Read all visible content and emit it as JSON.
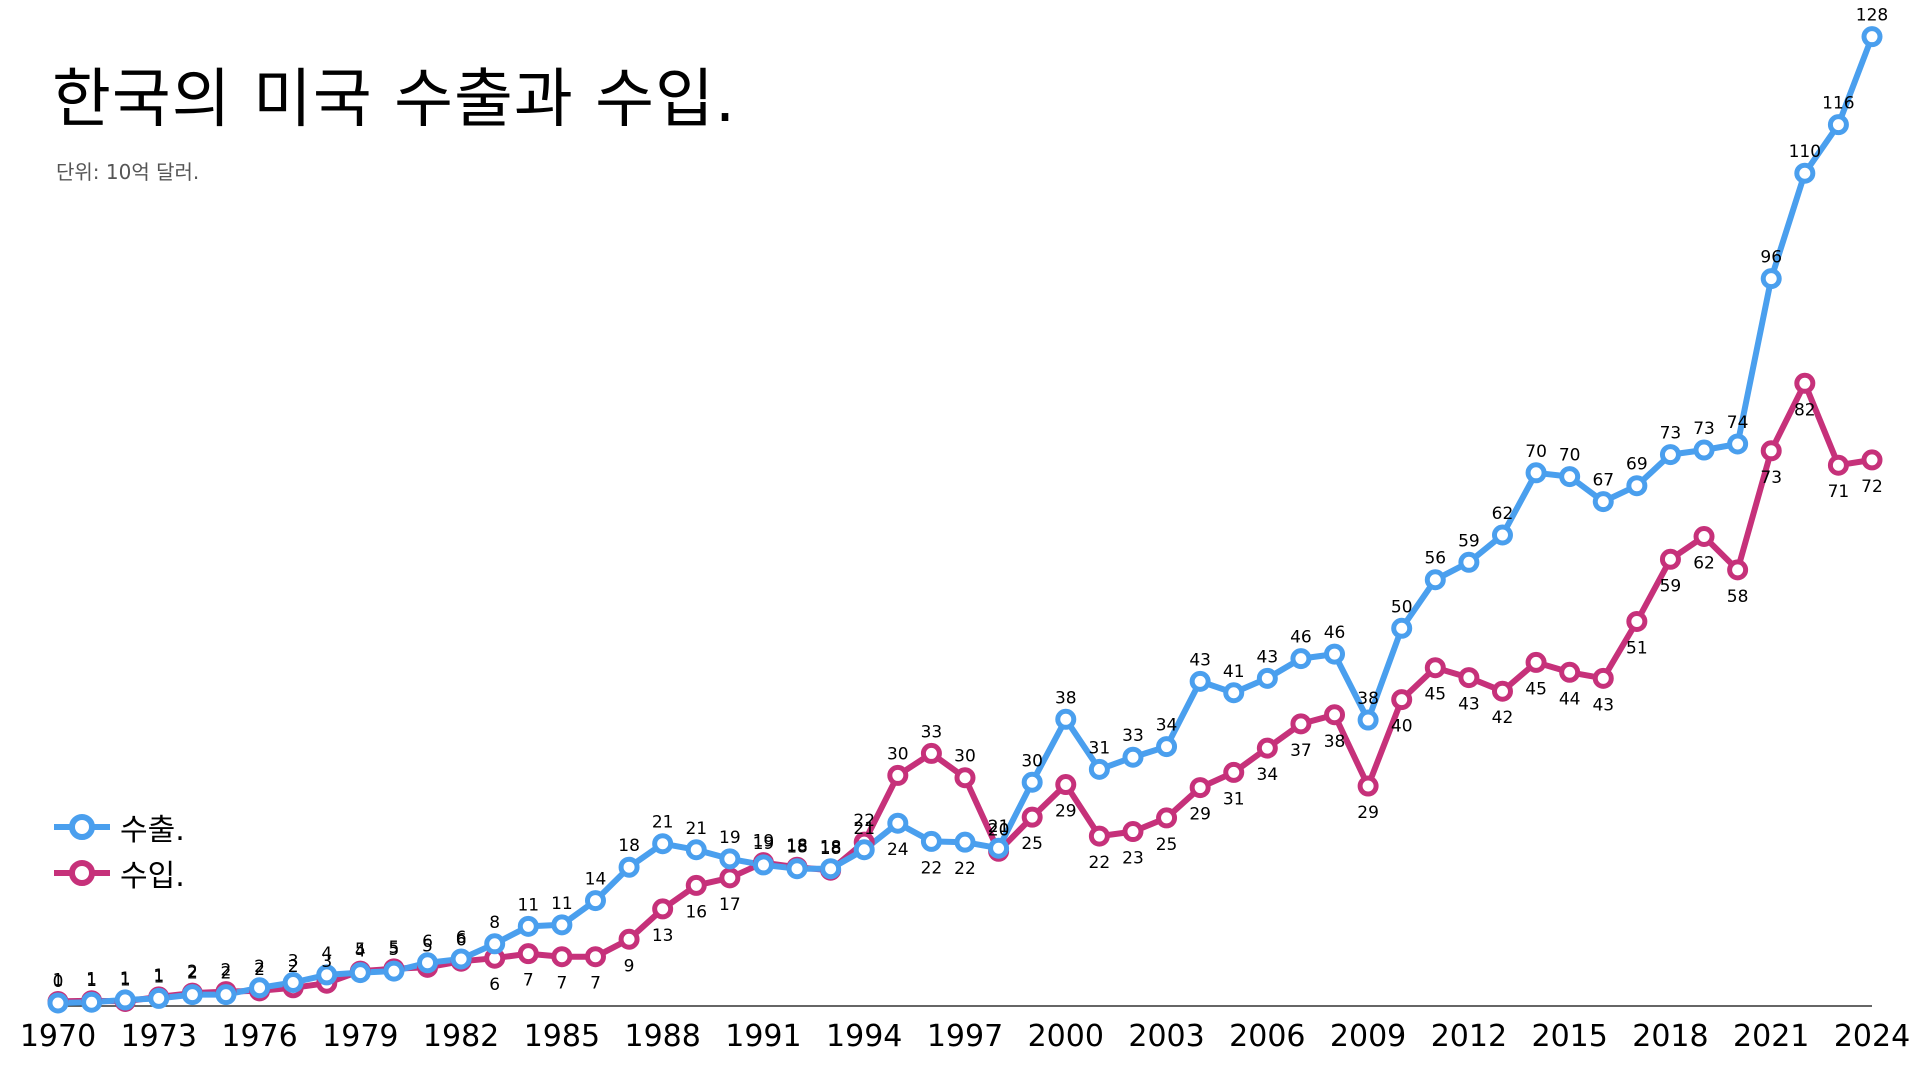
{
  "title": "한국의 미국 수출과 수입.",
  "subtitle": "단위: 10억 달러.",
  "colors": {
    "exports": "#4a9fee",
    "imports": "#c6317a",
    "axis": "#333333",
    "background": "#ffffff"
  },
  "legend": {
    "position": "bottom-left",
    "items": [
      {
        "label": "수출.",
        "color": "#4a9fee"
      },
      {
        "label": "수입.",
        "color": "#c6317a"
      }
    ]
  },
  "chart_data": {
    "type": "line",
    "title": "한국의 미국 수출과 수입.",
    "subtitle": "단위: 10억 달러.",
    "xlabel": "",
    "ylabel": "",
    "x": [
      1970,
      1971,
      1972,
      1973,
      1974,
      1975,
      1976,
      1977,
      1978,
      1979,
      1980,
      1981,
      1982,
      1983,
      1984,
      1985,
      1986,
      1987,
      1988,
      1989,
      1990,
      1991,
      1992,
      1993,
      1994,
      1995,
      1996,
      1997,
      1998,
      1999,
      2000,
      2001,
      2002,
      2003,
      2004,
      2005,
      2006,
      2007,
      2008,
      2009,
      2010,
      2011,
      2012,
      2013,
      2014,
      2015,
      2016,
      2017,
      2018,
      2019,
      2020,
      2021,
      2022,
      2023,
      2024
    ],
    "x_ticks": [
      1970,
      1973,
      1976,
      1979,
      1982,
      1985,
      1988,
      1991,
      1994,
      1997,
      2000,
      2003,
      2006,
      2009,
      2012,
      2015,
      2018,
      2021,
      2024
    ],
    "ylim": [
      0,
      130
    ],
    "grid": false,
    "series": [
      {
        "name": "수출.",
        "values": [
          0.4,
          0.5,
          0.8,
          1.0,
          1.5,
          1.5,
          2.4,
          3.1,
          4.1,
          4.4,
          4.6,
          5.7,
          6.2,
          8.2,
          10.5,
          10.7,
          13.9,
          18.3,
          21.4,
          20.6,
          19.4,
          18.6,
          18.1,
          18.1,
          20.6,
          24.1,
          21.7,
          21.6,
          20.8,
          29.5,
          37.8,
          31.2,
          32.8,
          34.2,
          42.8,
          41.3,
          43.2,
          45.8,
          46.4,
          37.7,
          49.8,
          56.2,
          58.5,
          62.1,
          70.3,
          69.8,
          66.5,
          68.6,
          72.7,
          73.3,
          74.1,
          95.9,
          109.8,
          116.2,
          127.8
        ]
      },
      {
        "name": "수입.",
        "values": [
          0.6,
          0.7,
          0.6,
          1.2,
          1.7,
          1.9,
          2.0,
          2.4,
          3.0,
          4.6,
          4.9,
          5.1,
          5.9,
          6.3,
          6.9,
          6.5,
          6.5,
          8.8,
          12.8,
          15.9,
          16.9,
          18.9,
          18.3,
          17.9,
          21.6,
          30.4,
          33.3,
          30.1,
          20.4,
          24.9,
          29.2,
          22.4,
          23.0,
          24.8,
          28.8,
          30.8,
          34.0,
          37.2,
          38.4,
          29.0,
          40.4,
          44.6,
          43.3,
          41.5,
          45.3,
          44.0,
          43.2,
          50.7,
          58.9,
          61.9,
          57.5,
          73.2,
          82.1,
          71.3,
          72.0
        ]
      }
    ]
  }
}
